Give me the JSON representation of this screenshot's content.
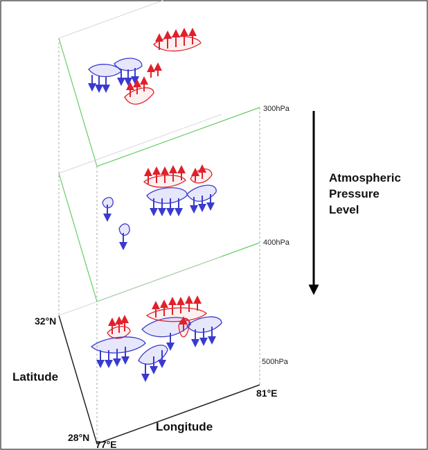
{
  "levels": [
    "300hPa",
    "400hPa",
    "500hPa"
  ],
  "vertical_label": [
    "Atmospheric",
    "Pressure",
    "Level"
  ],
  "axes": {
    "latitude_label": "Latitude",
    "longitude_label": "Longitude",
    "lat_top": "32°N",
    "lat_bottom": "28°N",
    "lon_left": "77°E",
    "lon_right": "81°E"
  }
}
